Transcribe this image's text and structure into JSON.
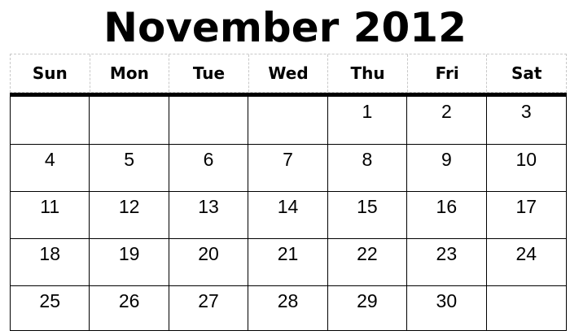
{
  "calendar": {
    "title": "November 2012",
    "weekdays": [
      "Sun",
      "Mon",
      "Tue",
      "Wed",
      "Thu",
      "Fri",
      "Sat"
    ],
    "weeks": [
      [
        "",
        "",
        "",
        "",
        "1",
        "2",
        "3"
      ],
      [
        "4",
        "5",
        "6",
        "7",
        "8",
        "9",
        "10"
      ],
      [
        "11",
        "12",
        "13",
        "14",
        "15",
        "16",
        "17"
      ],
      [
        "18",
        "19",
        "20",
        "21",
        "22",
        "23",
        "24"
      ],
      [
        "25",
        "26",
        "27",
        "28",
        "29",
        "30",
        ""
      ]
    ]
  }
}
